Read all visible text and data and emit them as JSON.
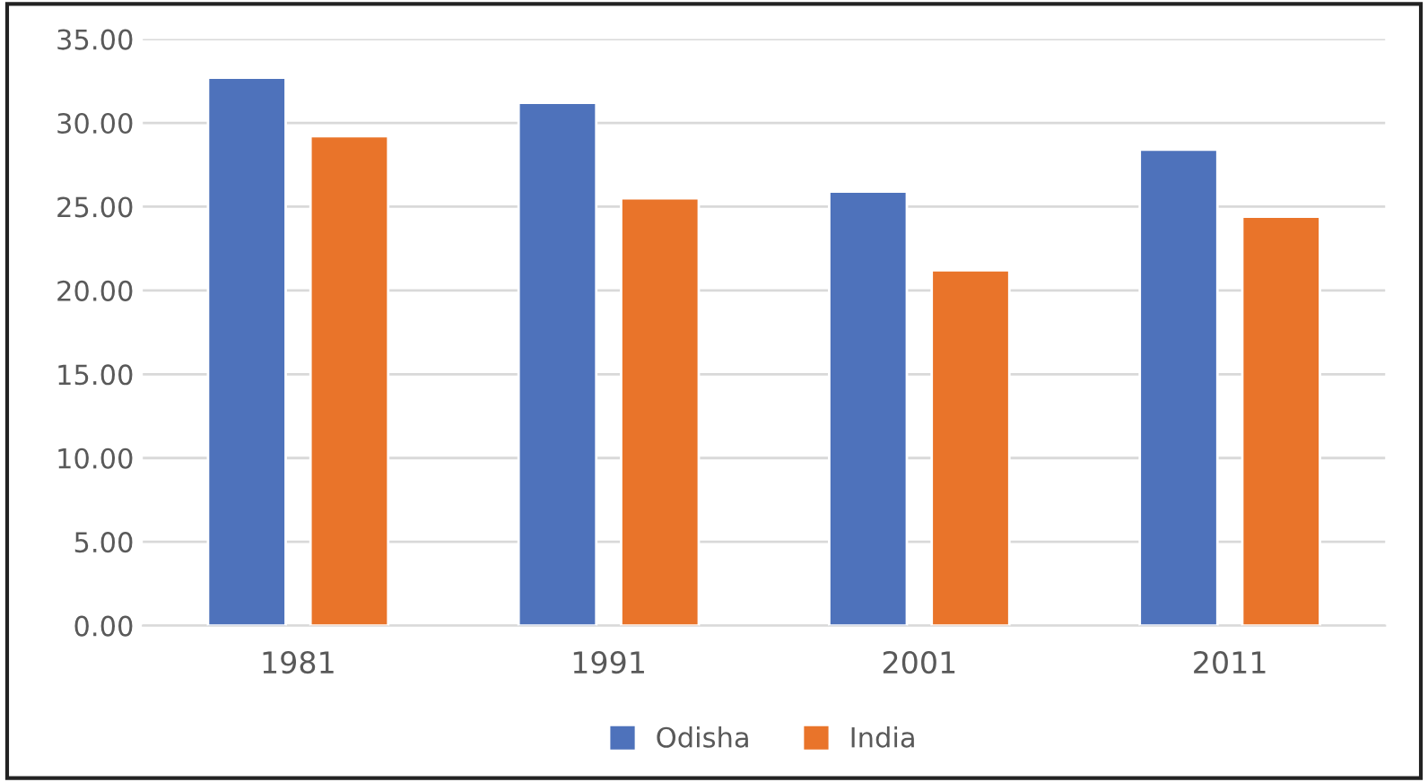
{
  "chart_data": {
    "type": "bar",
    "categories": [
      "1981",
      "1991",
      "2001",
      "2011"
    ],
    "series": [
      {
        "name": "Odisha",
        "color": "#4e72bb",
        "values": [
          32.7,
          31.2,
          25.9,
          28.4
        ]
      },
      {
        "name": "India",
        "color": "#e9742a",
        "values": [
          29.2,
          25.5,
          21.2,
          24.4
        ]
      }
    ],
    "ylim": [
      0,
      35
    ],
    "yticks": [
      {
        "value": 0,
        "label": "0.00"
      },
      {
        "value": 5,
        "label": "5.00"
      },
      {
        "value": 10,
        "label": "10.00"
      },
      {
        "value": 15,
        "label": "15.00"
      },
      {
        "value": 20,
        "label": "20.00"
      },
      {
        "value": 25,
        "label": "25.00"
      },
      {
        "value": 30,
        "label": "30.00"
      },
      {
        "value": 35,
        "label": "35.00"
      }
    ],
    "grid": "y",
    "legend": "bottom"
  }
}
